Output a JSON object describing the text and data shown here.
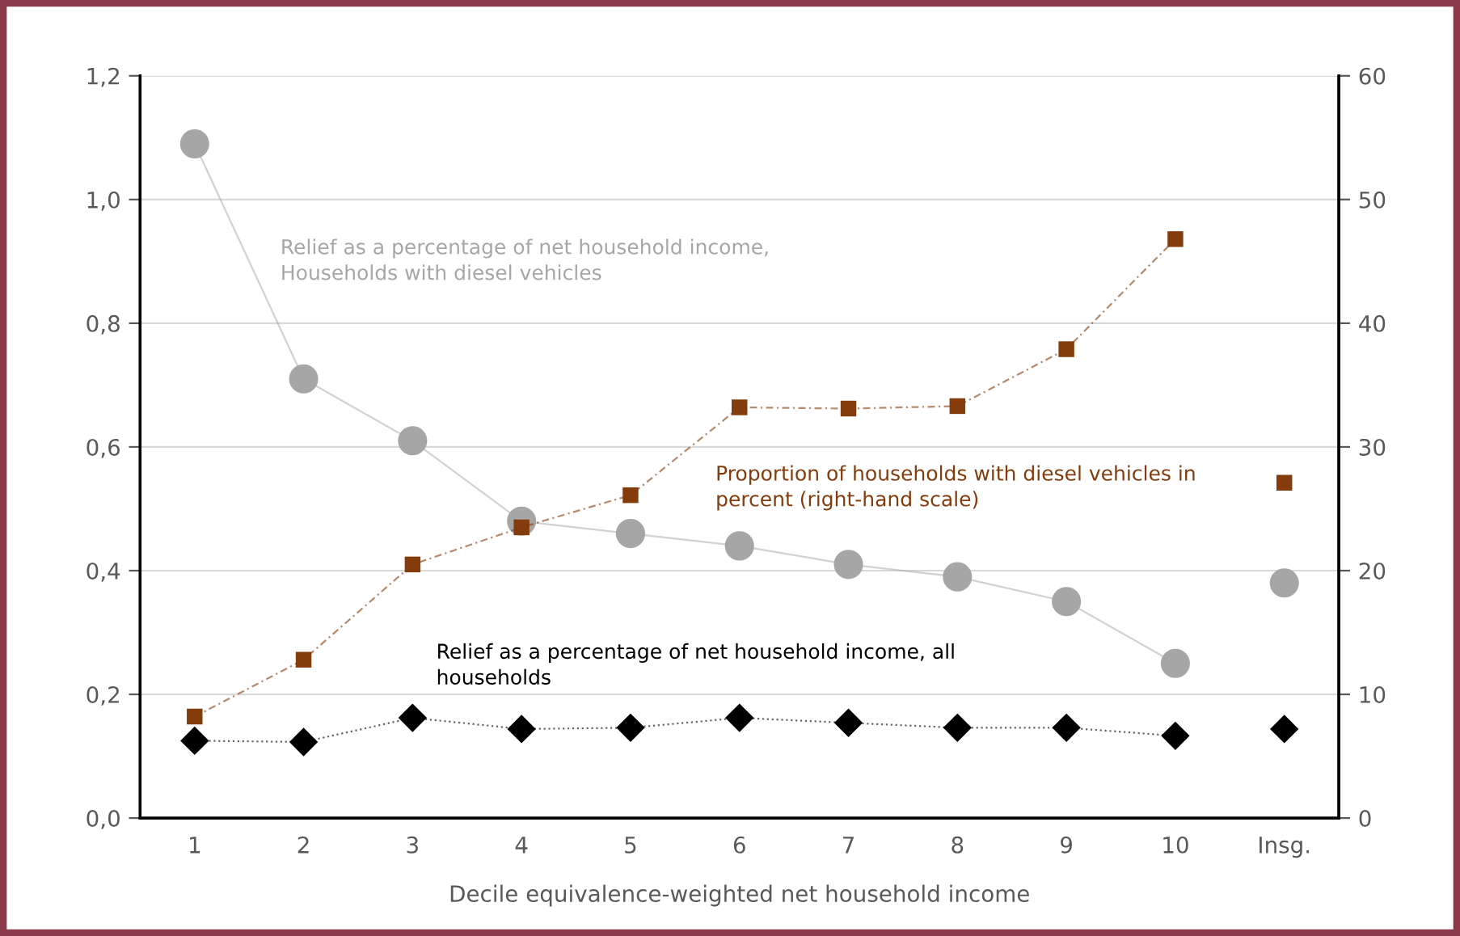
{
  "chart_data": {
    "type": "line",
    "xlabel": "Decile equivalence-weighted net household income",
    "categories": [
      "1",
      "2",
      "3",
      "4",
      "5",
      "6",
      "7",
      "8",
      "9",
      "10",
      "Insg."
    ],
    "ylim": [
      0,
      1.2
    ],
    "yticks": [
      {
        "value": 0,
        "label": "0,0"
      },
      {
        "value": 0.2,
        "label": "0,2"
      },
      {
        "value": 0.4,
        "label": "0,4"
      },
      {
        "value": 0.6,
        "label": "0,6"
      },
      {
        "value": 0.8,
        "label": "0,8"
      },
      {
        "value": 1.0,
        "label": "1,0"
      },
      {
        "value": 1.2,
        "label": "1,2"
      }
    ],
    "y2lim": [
      0,
      60
    ],
    "y2ticks": [
      0,
      10,
      20,
      30,
      40,
      50,
      60
    ],
    "grid": "y",
    "series": [
      {
        "name": "Relief as a percentage of net household income, Households with diesel vehicles",
        "type": "line",
        "color": "#a6a6a6",
        "marker": "circle",
        "line_style": "solid",
        "values": [
          1.09,
          0.71,
          0.61,
          0.48,
          0.46,
          0.44,
          0.41,
          0.39,
          0.35,
          0.25,
          null
        ]
      },
      {
        "type": "scatter",
        "color": "#a6a6a6",
        "marker": "circle",
        "values": [
          null,
          null,
          null,
          null,
          null,
          null,
          null,
          null,
          null,
          null,
          0.38
        ]
      },
      {
        "name": "Relief as a percentage of net household income, all households",
        "type": "line",
        "color": "#000000",
        "marker": "diamond",
        "line_style": "dotted",
        "values": [
          0.125,
          0.123,
          0.162,
          0.144,
          0.146,
          0.162,
          0.154,
          0.146,
          0.146,
          0.133,
          null
        ]
      },
      {
        "type": "scatter",
        "color": "#000000",
        "marker": "diamond",
        "values": [
          null,
          null,
          null,
          null,
          null,
          null,
          null,
          null,
          null,
          null,
          0.144
        ]
      },
      {
        "name": "Proportion of households with diesel vehicles in percent (right-hand scale)",
        "type": "line",
        "axis": "y2",
        "color": "#843c0c",
        "marker": "square",
        "line_style": "dashed",
        "values": [
          8.2,
          12.8,
          20.5,
          23.5,
          26.1,
          33.2,
          33.1,
          33.3,
          37.9,
          46.8,
          null
        ]
      },
      {
        "type": "scatter",
        "axis": "y2",
        "color": "#843c0c",
        "marker": "square",
        "values": [
          null,
          null,
          null,
          null,
          null,
          null,
          null,
          null,
          null,
          null,
          27.1
        ]
      }
    ]
  }
}
